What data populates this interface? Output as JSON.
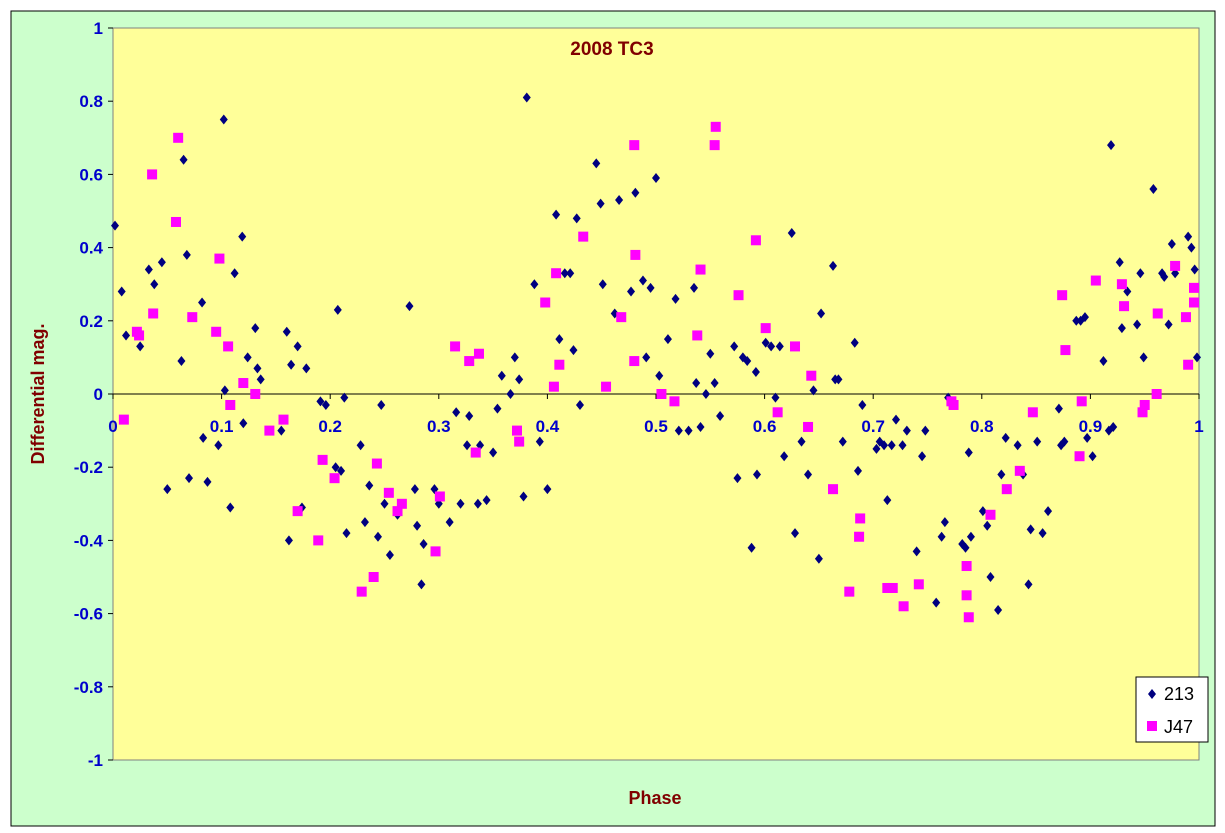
{
  "colors": {
    "outer_background": "#ccffcc",
    "plot_background": "#ffff99",
    "title_color": "#800000",
    "axis_label_color": "#800000",
    "tick_label_color": "#0000cc",
    "series_213": "#000080",
    "series_j47": "#ff00ff"
  },
  "chart_data": {
    "type": "scatter",
    "title": "2008 TC3",
    "xlabel": "Phase",
    "ylabel": "Differential mag.",
    "xlim": [
      0,
      1
    ],
    "ylim": [
      -1,
      1
    ],
    "xticks": [
      0,
      0.1,
      0.2,
      0.3,
      0.4,
      0.5,
      0.6,
      0.7,
      0.8,
      0.9,
      1
    ],
    "xtick_labels": [
      "0",
      "0.1",
      "0.2",
      "0.3",
      "0.4",
      "0.5",
      "0.6",
      "0.7",
      "0.8",
      "0.9",
      "1"
    ],
    "yticks": [
      -1,
      -0.8,
      -0.6,
      -0.4,
      -0.2,
      0,
      0.2,
      0.4,
      0.6,
      0.8,
      1
    ],
    "ytick_labels": [
      "-1",
      "-0.8",
      "-0.6",
      "-0.4",
      "-0.2",
      "0",
      "0.2",
      "0.4",
      "0.6",
      "0.8",
      "1"
    ],
    "grid": false,
    "legend_position": "bottom-right",
    "series": [
      {
        "name": "213",
        "marker": "diamond",
        "points": [
          [
            0.0,
            0.46
          ],
          [
            0.008,
            0.28
          ],
          [
            0.012,
            0.16
          ],
          [
            0.025,
            0.13
          ],
          [
            0.033,
            0.34
          ],
          [
            0.038,
            0.3
          ],
          [
            0.045,
            0.36
          ],
          [
            0.05,
            -0.26
          ],
          [
            0.065,
            0.64
          ],
          [
            0.063,
            0.09
          ],
          [
            0.068,
            0.38
          ],
          [
            0.07,
            -0.23
          ],
          [
            0.082,
            0.25
          ],
          [
            0.083,
            -0.12
          ],
          [
            0.087,
            -0.24
          ],
          [
            0.097,
            -0.14
          ],
          [
            0.102,
            0.75
          ],
          [
            0.103,
            0.01
          ],
          [
            0.108,
            -0.31
          ],
          [
            0.112,
            0.33
          ],
          [
            0.119,
            0.43
          ],
          [
            0.12,
            -0.08
          ],
          [
            0.124,
            0.1
          ],
          [
            0.131,
            0.18
          ],
          [
            0.133,
            0.07
          ],
          [
            0.136,
            0.04
          ],
          [
            0.155,
            -0.1
          ],
          [
            0.16,
            0.17
          ],
          [
            0.162,
            -0.4
          ],
          [
            0.164,
            0.08
          ],
          [
            0.17,
            0.13
          ],
          [
            0.174,
            -0.31
          ],
          [
            0.178,
            0.07
          ],
          [
            0.191,
            -0.02
          ],
          [
            0.196,
            -0.03
          ],
          [
            0.205,
            -0.2
          ],
          [
            0.207,
            0.23
          ],
          [
            0.21,
            -0.21
          ],
          [
            0.213,
            -0.01
          ],
          [
            0.215,
            -0.38
          ],
          [
            0.228,
            -0.14
          ],
          [
            0.232,
            -0.35
          ],
          [
            0.236,
            -0.25
          ],
          [
            0.244,
            -0.39
          ],
          [
            0.247,
            -0.03
          ],
          [
            0.25,
            -0.3
          ],
          [
            0.255,
            -0.44
          ],
          [
            0.262,
            -0.33
          ],
          [
            0.273,
            0.24
          ],
          [
            0.278,
            -0.26
          ],
          [
            0.28,
            -0.36
          ],
          [
            0.284,
            -0.52
          ],
          [
            0.286,
            -0.41
          ],
          [
            0.296,
            -0.26
          ],
          [
            0.3,
            -0.3
          ],
          [
            0.31,
            -0.35
          ],
          [
            0.316,
            -0.05
          ],
          [
            0.32,
            -0.3
          ],
          [
            0.326,
            -0.14
          ],
          [
            0.328,
            -0.06
          ],
          [
            0.336,
            -0.3
          ],
          [
            0.338,
            -0.14
          ],
          [
            0.344,
            -0.29
          ],
          [
            0.35,
            -0.16
          ],
          [
            0.354,
            -0.04
          ],
          [
            0.358,
            0.05
          ],
          [
            0.366,
            0.0
          ],
          [
            0.37,
            0.1
          ],
          [
            0.374,
            0.04
          ],
          [
            0.378,
            -0.28
          ],
          [
            0.381,
            0.81
          ],
          [
            0.388,
            0.3
          ],
          [
            0.393,
            -0.13
          ],
          [
            0.4,
            -0.26
          ],
          [
            0.408,
            0.49
          ],
          [
            0.411,
            0.15
          ],
          [
            0.416,
            0.33
          ],
          [
            0.421,
            0.33
          ],
          [
            0.424,
            0.12
          ],
          [
            0.427,
            0.48
          ],
          [
            0.43,
            -0.03
          ],
          [
            0.445,
            0.63
          ],
          [
            0.449,
            0.52
          ],
          [
            0.451,
            0.3
          ],
          [
            0.462,
            0.22
          ],
          [
            0.466,
            0.53
          ],
          [
            0.477,
            0.28
          ],
          [
            0.481,
            0.55
          ],
          [
            0.488,
            0.31
          ],
          [
            0.491,
            0.1
          ],
          [
            0.495,
            0.29
          ],
          [
            0.5,
            0.59
          ],
          [
            0.503,
            0.05
          ],
          [
            0.511,
            0.15
          ],
          [
            0.518,
            0.26
          ],
          [
            0.521,
            -0.1
          ],
          [
            0.53,
            -0.1
          ],
          [
            0.535,
            0.29
          ],
          [
            0.537,
            0.03
          ],
          [
            0.541,
            -0.09
          ],
          [
            0.546,
            0.0
          ],
          [
            0.55,
            0.11
          ],
          [
            0.554,
            0.03
          ],
          [
            0.559,
            -0.06
          ],
          [
            0.572,
            0.13
          ],
          [
            0.575,
            -0.23
          ],
          [
            0.58,
            0.1
          ],
          [
            0.584,
            0.09
          ],
          [
            0.588,
            -0.42
          ],
          [
            0.592,
            0.06
          ],
          [
            0.593,
            -0.22
          ],
          [
            0.601,
            0.14
          ],
          [
            0.606,
            0.13
          ],
          [
            0.61,
            -0.01
          ],
          [
            0.614,
            0.13
          ],
          [
            0.618,
            -0.17
          ],
          [
            0.625,
            0.44
          ],
          [
            0.628,
            -0.38
          ],
          [
            0.634,
            -0.13
          ],
          [
            0.64,
            -0.22
          ],
          [
            0.645,
            0.01
          ],
          [
            0.65,
            -0.45
          ],
          [
            0.652,
            0.22
          ],
          [
            0.663,
            0.35
          ],
          [
            0.665,
            0.04
          ],
          [
            0.668,
            0.04
          ],
          [
            0.672,
            -0.13
          ],
          [
            0.683,
            0.14
          ],
          [
            0.686,
            -0.21
          ],
          [
            0.69,
            -0.03
          ],
          [
            0.703,
            -0.15
          ],
          [
            0.706,
            -0.13
          ],
          [
            0.71,
            -0.14
          ],
          [
            0.713,
            -0.29
          ],
          [
            0.717,
            -0.14
          ],
          [
            0.721,
            -0.07
          ],
          [
            0.727,
            -0.14
          ],
          [
            0.731,
            -0.1
          ],
          [
            0.74,
            -0.43
          ],
          [
            0.745,
            -0.17
          ],
          [
            0.748,
            -0.1
          ],
          [
            0.758,
            -0.57
          ],
          [
            0.763,
            -0.39
          ],
          [
            0.766,
            -0.35
          ],
          [
            0.769,
            -0.01
          ],
          [
            0.782,
            -0.41
          ],
          [
            0.785,
            -0.42
          ],
          [
            0.788,
            -0.16
          ],
          [
            0.79,
            -0.39
          ],
          [
            0.801,
            -0.32
          ],
          [
            0.805,
            -0.36
          ],
          [
            0.808,
            -0.5
          ],
          [
            0.815,
            -0.59
          ],
          [
            0.818,
            -0.22
          ],
          [
            0.822,
            -0.12
          ],
          [
            0.833,
            -0.14
          ],
          [
            0.838,
            -0.22
          ],
          [
            0.843,
            -0.52
          ],
          [
            0.845,
            -0.37
          ],
          [
            0.851,
            -0.13
          ],
          [
            0.856,
            -0.38
          ],
          [
            0.861,
            -0.32
          ],
          [
            0.871,
            -0.04
          ],
          [
            0.873,
            -0.14
          ],
          [
            0.876,
            -0.13
          ],
          [
            0.887,
            0.2
          ],
          [
            0.891,
            0.2
          ],
          [
            0.895,
            0.21
          ],
          [
            0.897,
            -0.12
          ],
          [
            0.902,
            -0.17
          ],
          [
            0.912,
            0.09
          ],
          [
            0.917,
            -0.1
          ],
          [
            0.919,
            0.68
          ],
          [
            0.921,
            -0.09
          ],
          [
            0.927,
            0.36
          ],
          [
            0.929,
            0.18
          ],
          [
            0.934,
            0.28
          ],
          [
            0.943,
            0.19
          ],
          [
            0.946,
            0.33
          ],
          [
            0.949,
            0.1
          ],
          [
            0.958,
            0.56
          ],
          [
            0.966,
            0.33
          ],
          [
            0.968,
            0.32
          ],
          [
            0.972,
            0.19
          ],
          [
            0.975,
            0.41
          ],
          [
            0.978,
            0.33
          ],
          [
            0.99,
            0.43
          ],
          [
            0.993,
            0.4
          ],
          [
            0.996,
            0.34
          ],
          [
            0.999,
            0.1
          ]
        ]
      },
      {
        "name": "J47",
        "marker": "square",
        "points": [
          [
            0.01,
            -0.07
          ],
          [
            0.022,
            0.17
          ],
          [
            0.024,
            0.16
          ],
          [
            0.036,
            0.6
          ],
          [
            0.037,
            0.22
          ],
          [
            0.058,
            0.47
          ],
          [
            0.06,
            0.7
          ],
          [
            0.073,
            0.21
          ],
          [
            0.095,
            0.17
          ],
          [
            0.098,
            0.37
          ],
          [
            0.106,
            0.13
          ],
          [
            0.108,
            -0.03
          ],
          [
            0.12,
            0.03
          ],
          [
            0.131,
            0.0
          ],
          [
            0.144,
            -0.1
          ],
          [
            0.157,
            -0.07
          ],
          [
            0.17,
            -0.32
          ],
          [
            0.189,
            -0.4
          ],
          [
            0.193,
            -0.18
          ],
          [
            0.204,
            -0.23
          ],
          [
            0.229,
            -0.54
          ],
          [
            0.24,
            -0.5
          ],
          [
            0.243,
            -0.19
          ],
          [
            0.254,
            -0.27
          ],
          [
            0.262,
            -0.32
          ],
          [
            0.266,
            -0.3
          ],
          [
            0.297,
            -0.43
          ],
          [
            0.301,
            -0.28
          ],
          [
            0.315,
            0.13
          ],
          [
            0.328,
            0.09
          ],
          [
            0.334,
            -0.16
          ],
          [
            0.337,
            0.11
          ],
          [
            0.372,
            -0.1
          ],
          [
            0.374,
            -0.13
          ],
          [
            0.398,
            0.25
          ],
          [
            0.406,
            0.02
          ],
          [
            0.408,
            0.33
          ],
          [
            0.411,
            0.08
          ],
          [
            0.433,
            0.43
          ],
          [
            0.454,
            0.02
          ],
          [
            0.468,
            0.21
          ],
          [
            0.48,
            0.68
          ],
          [
            0.481,
            0.38
          ],
          [
            0.48,
            0.09
          ],
          [
            0.505,
            0.0
          ],
          [
            0.517,
            -0.02
          ],
          [
            0.538,
            0.16
          ],
          [
            0.541,
            0.34
          ],
          [
            0.554,
            0.68
          ],
          [
            0.555,
            0.73
          ],
          [
            0.576,
            0.27
          ],
          [
            0.592,
            0.42
          ],
          [
            0.601,
            0.18
          ],
          [
            0.612,
            -0.05
          ],
          [
            0.628,
            0.13
          ],
          [
            0.64,
            -0.09
          ],
          [
            0.643,
            0.05
          ],
          [
            0.663,
            -0.26
          ],
          [
            0.678,
            -0.54
          ],
          [
            0.687,
            -0.39
          ],
          [
            0.688,
            -0.34
          ],
          [
            0.713,
            -0.53
          ],
          [
            0.718,
            -0.53
          ],
          [
            0.728,
            -0.58
          ],
          [
            0.742,
            -0.52
          ],
          [
            0.772,
            -0.02
          ],
          [
            0.774,
            -0.03
          ],
          [
            0.786,
            -0.47
          ],
          [
            0.786,
            -0.55
          ],
          [
            0.788,
            -0.61
          ],
          [
            0.808,
            -0.33
          ],
          [
            0.823,
            -0.26
          ],
          [
            0.835,
            -0.21
          ],
          [
            0.847,
            -0.05
          ],
          [
            0.874,
            0.27
          ],
          [
            0.877,
            0.12
          ],
          [
            0.89,
            -0.17
          ],
          [
            0.892,
            -0.02
          ],
          [
            0.905,
            0.31
          ],
          [
            0.929,
            0.3
          ],
          [
            0.931,
            0.24
          ],
          [
            0.948,
            -0.05
          ],
          [
            0.95,
            -0.03
          ],
          [
            0.962,
            0.22
          ],
          [
            0.961,
            0.0
          ],
          [
            0.978,
            0.35
          ],
          [
            0.988,
            0.21
          ],
          [
            0.99,
            0.08
          ],
          [
            1.01,
            0.29
          ],
          [
            1.022,
            0.25
          ]
        ]
      }
    ]
  }
}
